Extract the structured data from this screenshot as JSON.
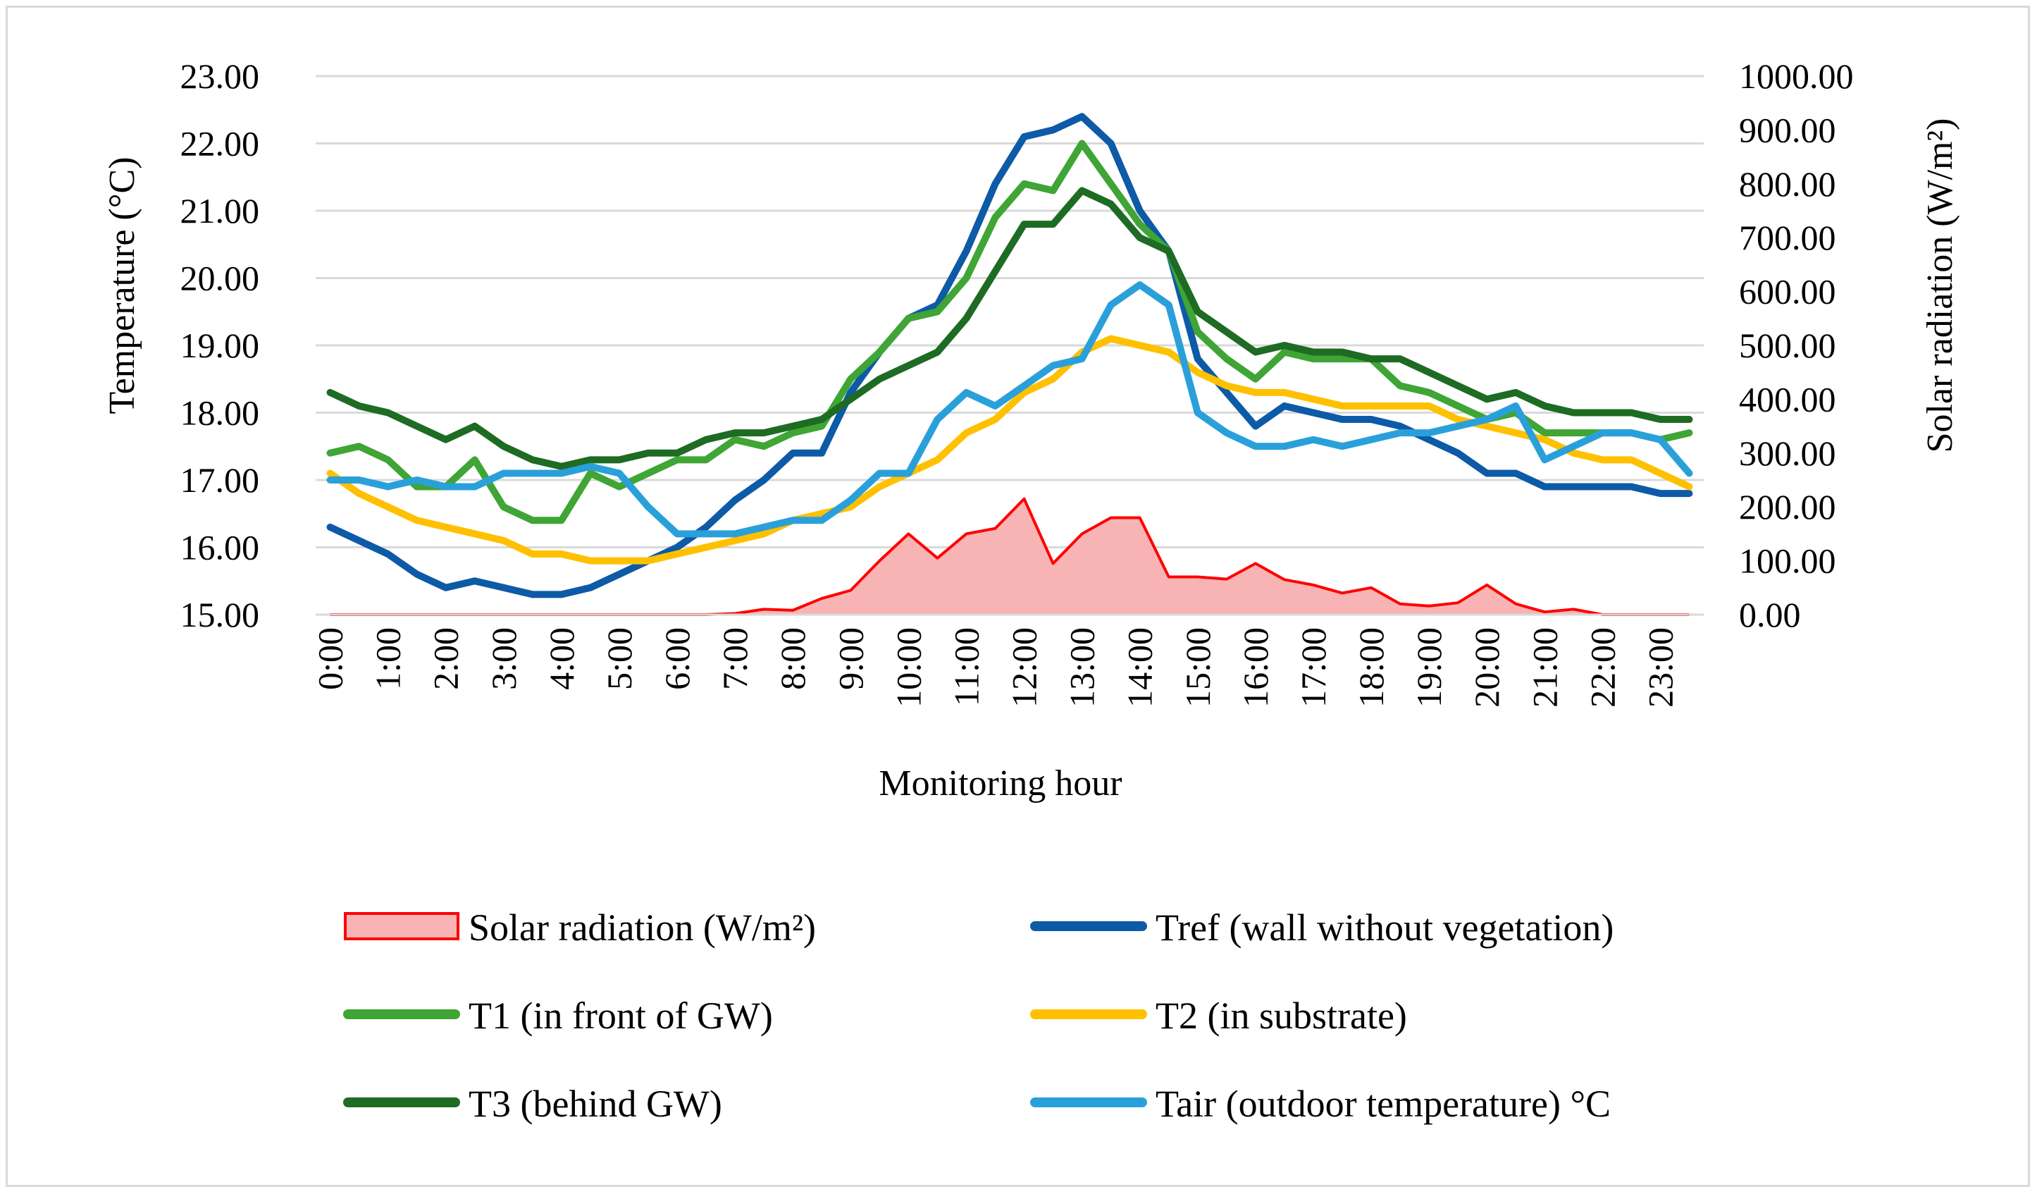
{
  "chart_data": {
    "type": "line",
    "title": "",
    "xlabel": "Monitoring hour",
    "ylabel": "Temperature (°C)",
    "y2label": "Solar radiation (W/m²)",
    "ylim": [
      15,
      23
    ],
    "y2lim": [
      0,
      1000
    ],
    "y_ticks": [
      "15.00",
      "16.00",
      "17.00",
      "18.00",
      "19.00",
      "20.00",
      "21.00",
      "22.00",
      "23.00"
    ],
    "y2_ticks": [
      "0.00",
      "100.00",
      "200.00",
      "300.00",
      "400.00",
      "500.00",
      "600.00",
      "700.00",
      "800.00",
      "900.00",
      "1000.00"
    ],
    "x_tick_labels": [
      "0:00",
      "1:00",
      "2:00",
      "3:00",
      "4:00",
      "5:00",
      "6:00",
      "7:00",
      "8:00",
      "9:00",
      "10:00",
      "11:00",
      "12:00",
      "13:00",
      "14:00",
      "15:00",
      "16:00",
      "17:00",
      "18:00",
      "19:00",
      "20:00",
      "21:00",
      "22:00",
      "23:00"
    ],
    "x": [
      "0:00",
      "0:30",
      "1:00",
      "1:30",
      "2:00",
      "2:30",
      "3:00",
      "3:30",
      "4:00",
      "4:30",
      "5:00",
      "5:30",
      "6:00",
      "6:30",
      "7:00",
      "7:30",
      "8:00",
      "8:30",
      "9:00",
      "9:30",
      "10:00",
      "10:30",
      "11:00",
      "11:30",
      "12:00",
      "12:30",
      "13:00",
      "13:30",
      "14:00",
      "14:30",
      "15:00",
      "15:30",
      "16:00",
      "16:30",
      "17:00",
      "17:30",
      "18:00",
      "18:30",
      "19:00",
      "19:30",
      "20:00",
      "20:30",
      "21:00",
      "21:30",
      "22:00",
      "22:30",
      "23:00",
      "23:30"
    ],
    "grid": true,
    "legend_position": "bottom",
    "series": [
      {
        "name": "Solar radiation (W/m²)",
        "type": "area",
        "axis": "right",
        "color": "#ff0000",
        "fill": "#f8b4b4",
        "values": [
          0,
          0,
          0,
          0,
          0,
          0,
          0,
          0,
          0,
          0,
          0,
          0,
          0,
          0,
          2,
          10,
          8,
          30,
          45,
          100,
          150,
          105,
          150,
          160,
          215,
          95,
          150,
          180,
          180,
          70,
          70,
          66,
          95,
          65,
          55,
          40,
          50,
          20,
          16,
          22,
          55,
          20,
          5,
          10,
          0,
          0,
          0,
          0
        ]
      },
      {
        "name": "Tref (wall without vegetation)",
        "type": "line",
        "axis": "left",
        "color": "#0d5aa7",
        "values": [
          16.3,
          16.1,
          15.9,
          15.6,
          15.4,
          15.5,
          15.4,
          15.3,
          15.3,
          15.4,
          15.6,
          15.8,
          16.0,
          16.3,
          16.7,
          17.0,
          17.4,
          17.4,
          18.3,
          18.9,
          19.4,
          19.6,
          20.4,
          21.4,
          22.1,
          22.2,
          22.4,
          22.0,
          21.0,
          20.4,
          18.8,
          18.3,
          17.8,
          18.1,
          18.0,
          17.9,
          17.9,
          17.8,
          17.6,
          17.4,
          17.1,
          17.1,
          16.9,
          16.9,
          16.9,
          16.9,
          16.8,
          16.8
        ]
      },
      {
        "name": "T1 (in front of GW)",
        "type": "line",
        "axis": "left",
        "color": "#3fa535",
        "values": [
          17.4,
          17.5,
          17.3,
          16.9,
          16.9,
          17.3,
          16.6,
          16.4,
          16.4,
          17.1,
          16.9,
          17.1,
          17.3,
          17.3,
          17.6,
          17.5,
          17.7,
          17.8,
          18.5,
          18.9,
          19.4,
          19.5,
          20.0,
          20.9,
          21.4,
          21.3,
          22.0,
          21.4,
          20.8,
          20.4,
          19.2,
          18.8,
          18.5,
          18.9,
          18.8,
          18.8,
          18.8,
          18.4,
          18.3,
          18.1,
          17.9,
          18.0,
          17.7,
          17.7,
          17.7,
          17.7,
          17.6,
          17.7
        ]
      },
      {
        "name": "T2 (in substrate)",
        "type": "line",
        "axis": "left",
        "color": "#ffc000",
        "values": [
          17.1,
          16.8,
          16.6,
          16.4,
          16.3,
          16.2,
          16.1,
          15.9,
          15.9,
          15.8,
          15.8,
          15.8,
          15.9,
          16.0,
          16.1,
          16.2,
          16.4,
          16.5,
          16.6,
          16.9,
          17.1,
          17.3,
          17.7,
          17.9,
          18.3,
          18.5,
          18.9,
          19.1,
          19.0,
          18.9,
          18.6,
          18.4,
          18.3,
          18.3,
          18.2,
          18.1,
          18.1,
          18.1,
          18.1,
          17.9,
          17.8,
          17.7,
          17.6,
          17.4,
          17.3,
          17.3,
          17.1,
          16.9
        ]
      },
      {
        "name": "T3 (behind GW)",
        "type": "line",
        "axis": "left",
        "color": "#1e6b24",
        "values": [
          18.3,
          18.1,
          18.0,
          17.8,
          17.6,
          17.8,
          17.5,
          17.3,
          17.2,
          17.3,
          17.3,
          17.4,
          17.4,
          17.6,
          17.7,
          17.7,
          17.8,
          17.9,
          18.2,
          18.5,
          18.7,
          18.9,
          19.4,
          20.1,
          20.8,
          20.8,
          21.3,
          21.1,
          20.6,
          20.4,
          19.5,
          19.2,
          18.9,
          19.0,
          18.9,
          18.9,
          18.8,
          18.8,
          18.6,
          18.4,
          18.2,
          18.3,
          18.1,
          18.0,
          18.0,
          18.0,
          17.9,
          17.9
        ]
      },
      {
        "name": "Tair (outdoor temperature) °C",
        "type": "line",
        "axis": "left",
        "color": "#2aa0da",
        "values": [
          17.0,
          17.0,
          16.9,
          17.0,
          16.9,
          16.9,
          17.1,
          17.1,
          17.1,
          17.2,
          17.1,
          16.6,
          16.2,
          16.2,
          16.2,
          16.3,
          16.4,
          16.4,
          16.7,
          17.1,
          17.1,
          17.9,
          18.3,
          18.1,
          18.4,
          18.7,
          18.8,
          19.6,
          19.9,
          19.6,
          18.0,
          17.7,
          17.5,
          17.5,
          17.6,
          17.5,
          17.6,
          17.7,
          17.7,
          17.8,
          17.9,
          18.1,
          17.3,
          17.5,
          17.7,
          17.7,
          17.6,
          17.1
        ]
      }
    ]
  }
}
